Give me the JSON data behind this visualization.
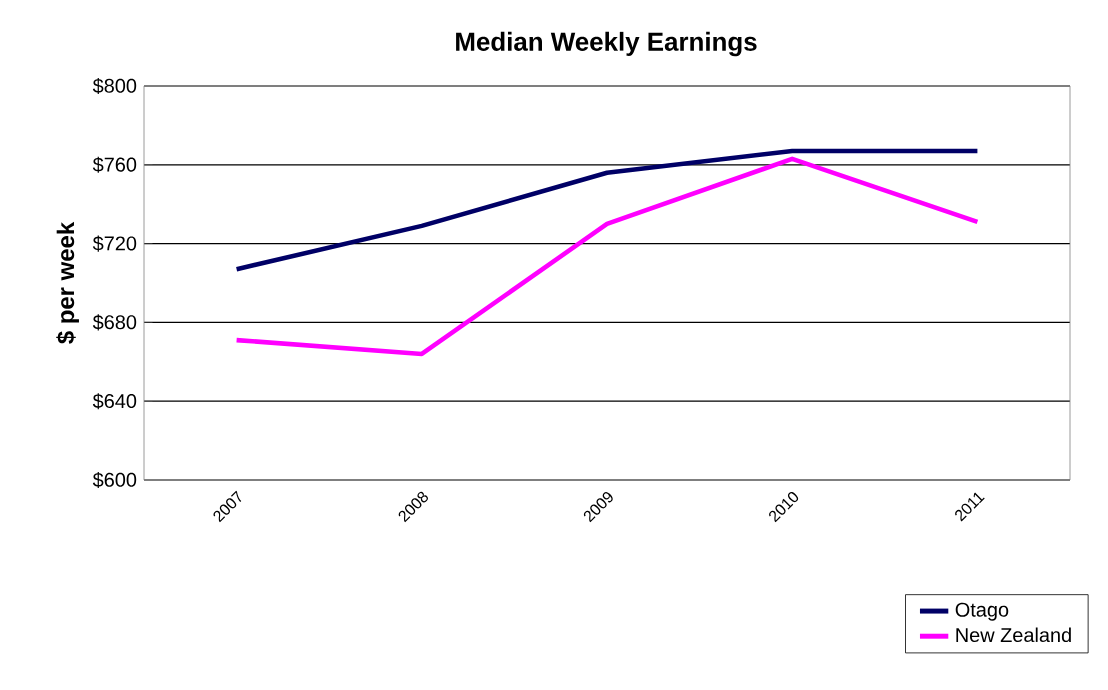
{
  "chart_data": {
    "type": "line",
    "title": "Median Weekly Earnings",
    "ylabel": "$ per week",
    "categories": [
      "2007",
      "2008",
      "2009",
      "2010",
      "2011"
    ],
    "series": [
      {
        "name": "Otago",
        "color": "#000066",
        "values": [
          707,
          729,
          756,
          767,
          767
        ]
      },
      {
        "name": "New Zealand",
        "color": "#ff00ff",
        "values": [
          671,
          664,
          730,
          763,
          731
        ]
      }
    ],
    "ylim": [
      600,
      800
    ],
    "yticks": [
      {
        "value": 600,
        "label": "$600"
      },
      {
        "value": 640,
        "label": "$640"
      },
      {
        "value": 680,
        "label": "$680"
      },
      {
        "value": 720,
        "label": "$720"
      },
      {
        "value": 760,
        "label": "$760"
      },
      {
        "value": 800,
        "label": "$800"
      }
    ],
    "grid": "y",
    "legend": "bottom right",
    "marker": "none",
    "line_style": "solid"
  }
}
